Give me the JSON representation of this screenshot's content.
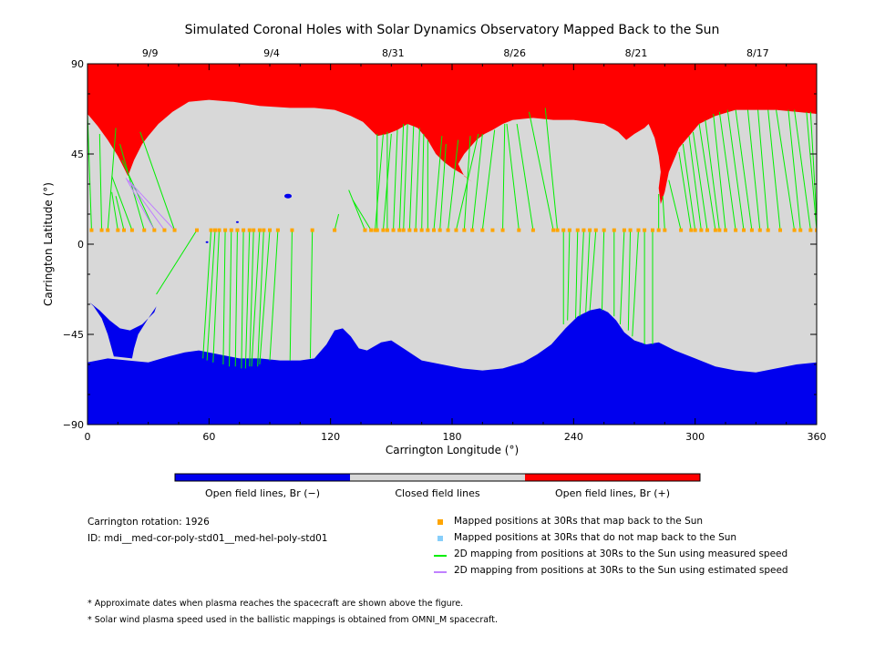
{
  "chart_data": {
    "type": "scatter",
    "title": "Simulated Coronal Holes with Solar Dynamics Observatory Mapped Back to the Sun",
    "xlabel": "Carrington Longitude (°)",
    "ylabel": "Carrington Latitude (°)",
    "xlim": [
      0,
      360
    ],
    "ylim": [
      -90,
      90
    ],
    "x_ticks": [
      0,
      60,
      120,
      180,
      240,
      300,
      360
    ],
    "y_ticks": [
      90,
      45,
      0,
      -45,
      -90
    ],
    "top_dates": [
      {
        "label": "9/9",
        "lon": 30
      },
      {
        "label": "9/4",
        "lon": 90
      },
      {
        "label": "8/31",
        "lon": 150
      },
      {
        "label": "8/26",
        "lon": 210
      },
      {
        "label": "8/21",
        "lon": 270
      },
      {
        "label": "8/17",
        "lon": 330
      }
    ],
    "colorbar": [
      {
        "label": "Open field lines, Br (−)",
        "color": "#0000ee"
      },
      {
        "label": "Closed field lines",
        "color": "#d8d8d8"
      },
      {
        "label": "Open field lines, Br (+)",
        "color": "#ff0000"
      }
    ],
    "positive_hole_boundary": [
      [
        0,
        65
      ],
      [
        5,
        59
      ],
      [
        10,
        52
      ],
      [
        15,
        44
      ],
      [
        18,
        38
      ],
      [
        20,
        34
      ],
      [
        23,
        42
      ],
      [
        27,
        50
      ],
      [
        30,
        54
      ],
      [
        35,
        60
      ],
      [
        42,
        66
      ],
      [
        50,
        71
      ],
      [
        60,
        72
      ],
      [
        72,
        71
      ],
      [
        85,
        69
      ],
      [
        100,
        68
      ],
      [
        112,
        68
      ],
      [
        122,
        67
      ],
      [
        130,
        64
      ],
      [
        136,
        61
      ],
      [
        140,
        57
      ],
      [
        143,
        54
      ],
      [
        148,
        55
      ],
      [
        153,
        57
      ],
      [
        158,
        60
      ],
      [
        163,
        58
      ],
      [
        168,
        52
      ],
      [
        172,
        45
      ],
      [
        176,
        41
      ],
      [
        180,
        38
      ],
      [
        185,
        35
      ],
      [
        190,
        31
      ],
      [
        186,
        34
      ],
      [
        183,
        40
      ],
      [
        186,
        45
      ],
      [
        192,
        52
      ],
      [
        196,
        55
      ],
      [
        200,
        57
      ],
      [
        205,
        60
      ],
      [
        210,
        62
      ],
      [
        220,
        63
      ],
      [
        230,
        62
      ],
      [
        240,
        62
      ],
      [
        255,
        60
      ],
      [
        262,
        56
      ],
      [
        266,
        52
      ],
      [
        270,
        55
      ],
      [
        275,
        58
      ],
      [
        277,
        60
      ],
      [
        280,
        53
      ],
      [
        282,
        44
      ],
      [
        283,
        36
      ],
      [
        282,
        28
      ],
      [
        283,
        20
      ],
      [
        285,
        26
      ],
      [
        287,
        36
      ],
      [
        292,
        48
      ],
      [
        297,
        54
      ],
      [
        302,
        60
      ],
      [
        310,
        64
      ],
      [
        320,
        67
      ],
      [
        330,
        67
      ],
      [
        340,
        67
      ],
      [
        350,
        66
      ],
      [
        360,
        65
      ]
    ],
    "negative_hole_boundary": [
      [
        0,
        -59
      ],
      [
        10,
        -57
      ],
      [
        20,
        -58
      ],
      [
        30,
        -59
      ],
      [
        40,
        -56
      ],
      [
        48,
        -54
      ],
      [
        55,
        -53
      ],
      [
        65,
        -55
      ],
      [
        75,
        -57
      ],
      [
        85,
        -57
      ],
      [
        95,
        -58
      ],
      [
        105,
        -58
      ],
      [
        112,
        -57
      ],
      [
        118,
        -50
      ],
      [
        122,
        -43
      ],
      [
        126,
        -42
      ],
      [
        130,
        -46
      ],
      [
        134,
        -52
      ],
      [
        138,
        -53
      ],
      [
        145,
        -49
      ],
      [
        150,
        -48
      ],
      [
        156,
        -52
      ],
      [
        165,
        -58
      ],
      [
        175,
        -60
      ],
      [
        185,
        -62
      ],
      [
        195,
        -63
      ],
      [
        205,
        -62
      ],
      [
        215,
        -59
      ],
      [
        222,
        -55
      ],
      [
        229,
        -50
      ],
      [
        236,
        -42
      ],
      [
        242,
        -36
      ],
      [
        248,
        -33
      ],
      [
        253,
        -32
      ],
      [
        257,
        -34
      ],
      [
        261,
        -38
      ],
      [
        265,
        -44
      ],
      [
        270,
        -48
      ],
      [
        276,
        -50
      ],
      [
        282,
        -49
      ],
      [
        290,
        -53
      ],
      [
        300,
        -57
      ],
      [
        310,
        -61
      ],
      [
        320,
        -63
      ],
      [
        330,
        -64
      ],
      [
        340,
        -62
      ],
      [
        350,
        -60
      ],
      [
        360,
        -59
      ]
    ],
    "negative_hole_lobe": [
      [
        13,
        -56
      ],
      [
        10,
        -45
      ],
      [
        7,
        -37
      ],
      [
        3,
        -31
      ],
      [
        1,
        -29
      ],
      [
        6,
        -33
      ],
      [
        11,
        -38
      ],
      [
        16,
        -42
      ],
      [
        21,
        -43
      ],
      [
        27,
        -40
      ],
      [
        33,
        -34
      ],
      [
        34,
        -31
      ],
      [
        30,
        -37
      ],
      [
        25,
        -45
      ],
      [
        23,
        -52
      ],
      [
        22,
        -57
      ]
    ],
    "mapped_points_lat": 7,
    "mapped_points_lon": [
      2,
      7,
      10,
      15,
      18,
      22,
      28,
      33,
      38,
      43,
      54,
      61,
      63,
      65,
      68,
      71,
      74,
      77,
      80,
      82,
      85,
      87,
      90,
      94,
      101,
      111,
      122,
      137,
      140,
      142,
      143,
      146,
      148,
      151,
      154,
      156,
      159,
      162,
      165,
      168,
      171,
      174,
      178,
      182,
      186,
      190,
      195,
      200,
      205,
      213,
      220,
      230,
      232,
      235,
      238,
      242,
      245,
      248,
      251,
      255,
      260,
      265,
      268,
      272,
      275,
      279,
      282,
      285,
      293,
      298,
      300,
      303,
      306,
      310,
      312,
      315,
      320,
      324,
      328,
      332,
      336,
      342,
      349,
      352,
      357,
      360
    ],
    "measured_speed_mappings": [
      [
        2,
        7,
        0,
        65
      ],
      [
        7,
        7,
        6,
        55
      ],
      [
        10,
        7,
        14,
        58
      ],
      [
        15,
        7,
        12,
        26
      ],
      [
        18,
        7,
        14,
        24
      ],
      [
        22,
        7,
        12,
        34
      ],
      [
        28,
        7,
        16,
        50
      ],
      [
        33,
        7,
        17,
        42
      ],
      [
        43,
        7,
        26,
        56
      ],
      [
        54,
        7,
        34,
        -25
      ],
      [
        61,
        7,
        57,
        -57
      ],
      [
        63,
        7,
        59,
        -58
      ],
      [
        65,
        7,
        62,
        -59
      ],
      [
        68,
        7,
        67,
        -60
      ],
      [
        71,
        7,
        70,
        -61
      ],
      [
        74,
        7,
        73,
        -61
      ],
      [
        77,
        7,
        76,
        -62
      ],
      [
        80,
        7,
        78,
        -62
      ],
      [
        82,
        7,
        80,
        -61
      ],
      [
        85,
        7,
        81,
        -61
      ],
      [
        87,
        7,
        84,
        -61
      ],
      [
        90,
        7,
        85,
        -60
      ],
      [
        94,
        7,
        90,
        -58
      ],
      [
        101,
        7,
        100,
        -58
      ],
      [
        111,
        7,
        110,
        -57
      ],
      [
        122,
        7,
        124,
        15
      ],
      [
        137,
        7,
        129,
        27
      ],
      [
        140,
        7,
        131,
        22
      ],
      [
        142,
        7,
        146,
        55
      ],
      [
        143,
        7,
        143,
        55
      ],
      [
        146,
        7,
        150,
        55
      ],
      [
        148,
        7,
        148,
        56
      ],
      [
        151,
        7,
        153,
        57
      ],
      [
        154,
        7,
        156,
        60
      ],
      [
        156,
        7,
        158,
        60
      ],
      [
        159,
        7,
        161,
        59
      ],
      [
        162,
        7,
        164,
        58
      ],
      [
        165,
        7,
        166,
        55
      ],
      [
        168,
        7,
        168,
        52
      ],
      [
        171,
        7,
        175,
        54
      ],
      [
        174,
        7,
        177,
        50
      ],
      [
        178,
        7,
        183,
        52
      ],
      [
        182,
        7,
        193,
        55
      ],
      [
        186,
        7,
        189,
        54
      ],
      [
        190,
        7,
        195,
        55
      ],
      [
        195,
        7,
        201,
        57
      ],
      [
        205,
        7,
        206,
        60
      ],
      [
        213,
        7,
        207,
        60
      ],
      [
        220,
        7,
        212,
        60
      ],
      [
        230,
        7,
        218,
        66
      ],
      [
        232,
        7,
        226,
        68
      ],
      [
        235,
        7,
        235,
        -40
      ],
      [
        238,
        7,
        237,
        -38
      ],
      [
        242,
        7,
        241,
        -37
      ],
      [
        245,
        7,
        243,
        -36
      ],
      [
        248,
        7,
        246,
        -34
      ],
      [
        251,
        7,
        248,
        -33
      ],
      [
        255,
        7,
        254,
        -33
      ],
      [
        260,
        7,
        260,
        -36
      ],
      [
        265,
        7,
        263,
        -40
      ],
      [
        268,
        7,
        267,
        -43
      ],
      [
        272,
        7,
        269,
        -46
      ],
      [
        275,
        7,
        275,
        -50
      ],
      [
        279,
        7,
        279,
        -50
      ],
      [
        282,
        7,
        282,
        25
      ],
      [
        285,
        7,
        284,
        24
      ],
      [
        293,
        7,
        287,
        32
      ],
      [
        298,
        7,
        292,
        46
      ],
      [
        300,
        7,
        294,
        50
      ],
      [
        303,
        7,
        297,
        54
      ],
      [
        306,
        7,
        299,
        56
      ],
      [
        310,
        7,
        302,
        60
      ],
      [
        312,
        7,
        305,
        62
      ],
      [
        315,
        7,
        309,
        65
      ],
      [
        320,
        7,
        312,
        66
      ],
      [
        324,
        7,
        316,
        67
      ],
      [
        328,
        7,
        320,
        67
      ],
      [
        332,
        7,
        326,
        67
      ],
      [
        336,
        7,
        331,
        67
      ],
      [
        342,
        7,
        336,
        67
      ],
      [
        349,
        7,
        340,
        67
      ],
      [
        352,
        7,
        346,
        67
      ],
      [
        357,
        7,
        349,
        67
      ],
      [
        360,
        7,
        355,
        66
      ],
      [
        360,
        12,
        357,
        66
      ]
    ],
    "estimated_speed_mappings": [
      [
        33,
        7,
        19,
        33
      ],
      [
        38,
        7,
        20,
        32
      ],
      [
        43,
        7,
        21,
        31
      ]
    ],
    "small_negative_spots": [
      [
        99,
        24
      ],
      [
        59,
        1
      ],
      [
        74,
        11
      ]
    ]
  },
  "info": {
    "rotation": "Carrington rotation: 1926",
    "id": "ID: mdi__med-cor-poly-std01__med-hel-poly-std01"
  },
  "legend": [
    {
      "label": "Mapped positions at 30Rs that map back to the Sun",
      "color": "#ffa500",
      "kind": "square"
    },
    {
      "label": "Mapped positions at 30Rs that do not map back to the Sun",
      "color": "#87cefa",
      "kind": "square"
    },
    {
      "label": "2D mapping from positions at 30Rs to the Sun using measured speed",
      "color": "#00ee00",
      "kind": "line"
    },
    {
      "label": "2D mapping from positions at 30Rs to the Sun using estimated speed",
      "color": "#c080ff",
      "kind": "line"
    }
  ],
  "notes": [
    "* Approximate dates when plasma reaches the spacecraft are shown above the figure.",
    "* Solar wind plasma speed used in the ballistic mappings is obtained from OMNI_M spacecraft."
  ],
  "colors": {
    "closed": "#d8d8d8",
    "positive": "#ff0000",
    "negative": "#0000ee",
    "measured": "#00ee00",
    "estimated": "#c080ff",
    "mapped": "#ffa500"
  }
}
